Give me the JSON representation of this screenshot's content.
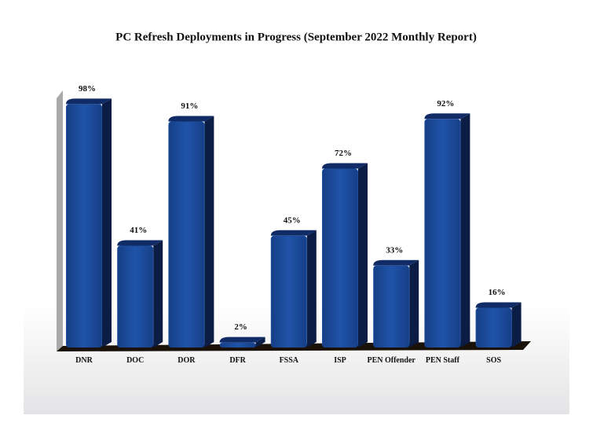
{
  "chart_data": {
    "type": "bar3d",
    "title": "PC Refresh Deployments in Progress (September 2022 Monthly Report)",
    "categories": [
      "DNR",
      "DOC",
      "DOR",
      "DFR",
      "FSSA",
      "ISP",
      "PEN Offender",
      "PEN Staff",
      "SOS"
    ],
    "values": [
      98,
      41,
      91,
      2,
      45,
      72,
      33,
      92,
      16
    ],
    "value_labels": [
      "98%",
      "41%",
      "91%",
      "2%",
      "45%",
      "72%",
      "33%",
      "92%",
      "16%"
    ],
    "color": "#1d4d9e"
  }
}
